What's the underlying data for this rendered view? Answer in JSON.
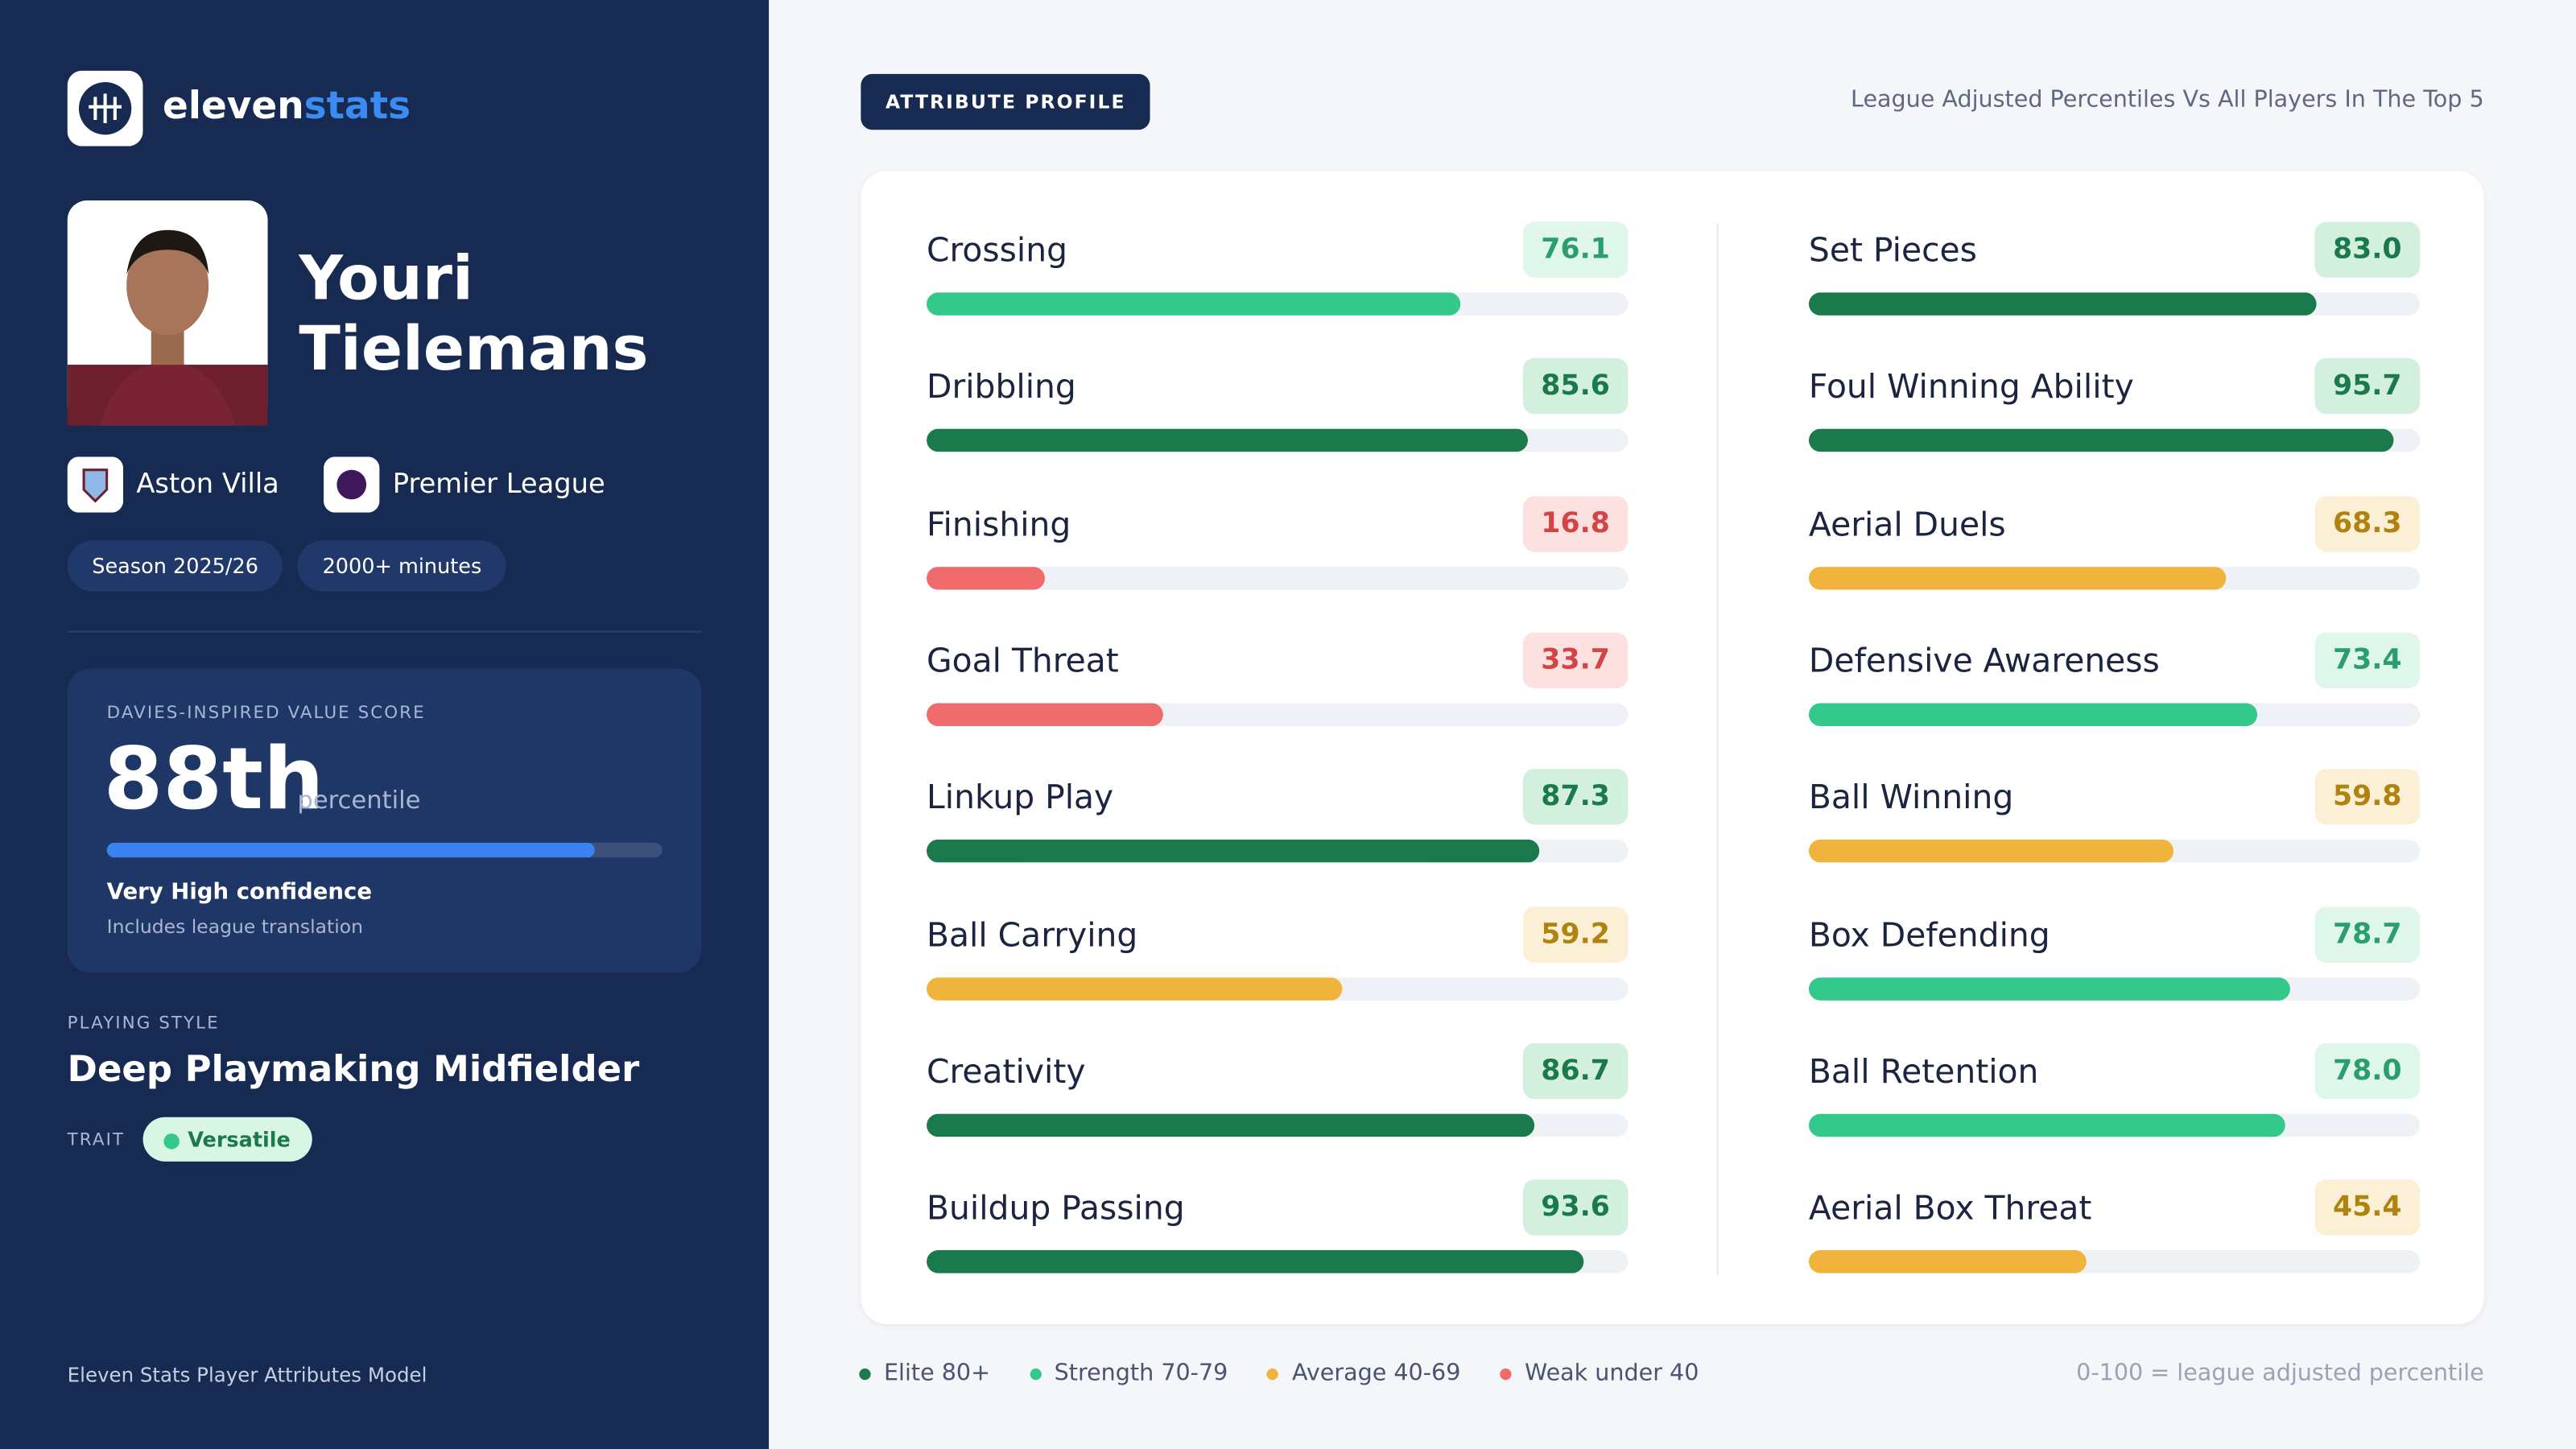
{
  "brand": {
    "first": "eleven",
    "second": "stats"
  },
  "player": {
    "name": "Youri Tielemans",
    "club": "Aston Villa",
    "league": "Premier League",
    "chips": [
      "Season 2025/26",
      "2000+ minutes"
    ]
  },
  "value_score": {
    "label": "DAVIES-INSPIRED VALUE SCORE",
    "score": 88,
    "score_label": "88th",
    "unit": "percentile",
    "confidence": "Very High confidence",
    "note": "Includes league translation"
  },
  "style": {
    "label": "PLAYING STYLE",
    "value": "Deep Playmaking Midfielder",
    "trait_label": "TRAIT",
    "trait": "Versatile"
  },
  "footer": "Eleven Stats Player Attributes Model",
  "profile": {
    "badge": "ATTRIBUTE PROFILE",
    "subtitle": "League Adjusted Percentiles Vs All Players In The Top 5",
    "range": [
      0,
      100
    ],
    "columns": [
      [
        {
          "name": "Crossing",
          "value": 76.1
        },
        {
          "name": "Dribbling",
          "value": 85.6
        },
        {
          "name": "Finishing",
          "value": 16.8
        },
        {
          "name": "Goal Threat",
          "value": 33.7
        },
        {
          "name": "Linkup Play",
          "value": 87.3
        },
        {
          "name": "Ball Carrying",
          "value": 59.2
        },
        {
          "name": "Creativity",
          "value": 86.7
        },
        {
          "name": "Buildup Passing",
          "value": 93.6
        }
      ],
      [
        {
          "name": "Set Pieces",
          "value": 83,
          "value_label": "83.0"
        },
        {
          "name": "Foul Winning Ability",
          "value": 95.7
        },
        {
          "name": "Aerial Duels",
          "value": 68.3
        },
        {
          "name": "Defensive Awareness",
          "value": 73.4
        },
        {
          "name": "Ball Winning",
          "value": 59.8
        },
        {
          "name": "Box Defending",
          "value": 78.7
        },
        {
          "name": "Ball Retention",
          "value": 78,
          "value_label": "78.0"
        },
        {
          "name": "Aerial Box Threat",
          "value": 45.4
        }
      ]
    ]
  },
  "legend": [
    {
      "name": "Elite 80+",
      "min": 80,
      "color": "#1a7a4c",
      "text": "#1a7a4c",
      "bg": "#d3f0df"
    },
    {
      "name": "Strength 70-79",
      "min": 70,
      "color": "#34c98a",
      "text": "#2a9e6c",
      "bg": "#dff6eb"
    },
    {
      "name": "Average 40-69",
      "min": 40,
      "color": "#f0b43c",
      "text": "#b0820f",
      "bg": "#fbf0d5"
    },
    {
      "name": "Weak under 40",
      "min": 0,
      "color": "#f06b6b",
      "text": "#d34444",
      "bg": "#fde1e1"
    }
  ],
  "footnote": "0-100 = league adjusted percentile"
}
